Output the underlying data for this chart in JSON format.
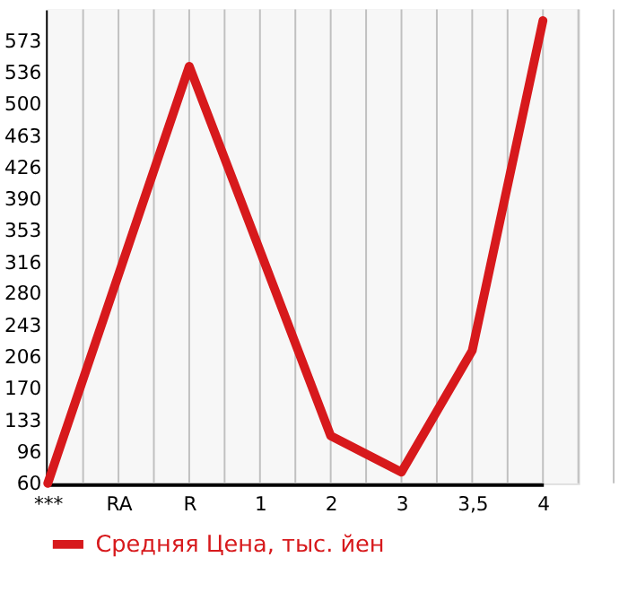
{
  "chart_data": {
    "type": "line",
    "categories": [
      "***",
      "RA",
      "R",
      "1",
      "2",
      "3",
      "3,5",
      "4"
    ],
    "series": [
      {
        "name": "Средняя Цена, тыс. йен",
        "color": "#d7191c",
        "values": [
          60,
          302,
          544,
          330,
          115,
          73,
          214,
          597
        ]
      }
    ],
    "ylim": [
      60,
      610
    ],
    "yticks": [
      60,
      96,
      133,
      170,
      206,
      243,
      280,
      316,
      353,
      390,
      426,
      463,
      500,
      536,
      573
    ],
    "grid": true,
    "legend": "bottom",
    "marker": "none",
    "line_style": "solid"
  }
}
